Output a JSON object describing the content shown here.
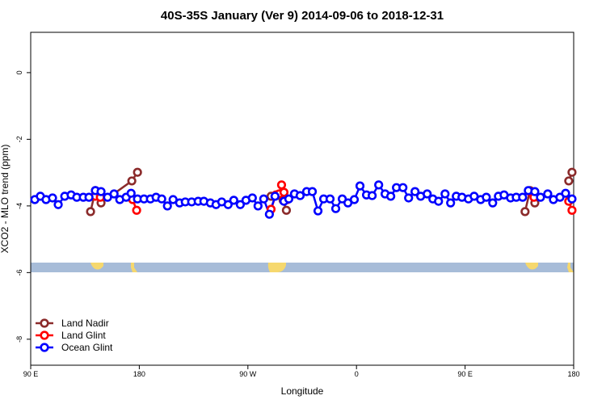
{
  "chart_data": {
    "type": "line",
    "title": "40S-35S January (Ver 9)   2014-09-06 to 2018-12-31",
    "x_label": "Longitude",
    "y_label": "XCO2 - MLO trend (ppm)",
    "xlim": [
      90,
      540
    ],
    "ylim": [
      -8.78,
      1.21
    ],
    "xticks": [
      {
        "value": 90,
        "label": "90 E"
      },
      180,
      {
        "value": 270,
        "label": "90 W"
      },
      {
        "value": 360,
        "label": "0"
      },
      {
        "value": 450,
        "label": "90 E"
      },
      {
        "value": 540,
        "label": "180"
      }
    ],
    "yticks": [
      0,
      -2,
      -4,
      -6,
      -8
    ],
    "legend": "bottom-left",
    "series": [
      {
        "name": "Land Nadir",
        "color": "#8b2b2b",
        "x": [
          139.6,
          143.6,
          148.3,
          173.8,
          178.5,
          null,
          289.2,
          299.2,
          301.9,
          null,
          499.7,
          503.8,
          507.8,
          null,
          535.9,
          538.6
        ],
        "values": [
          -4.17,
          -3.54,
          -3.91,
          -3.25,
          -2.99,
          null,
          -3.71,
          -3.83,
          -4.13,
          null,
          -4.17,
          -3.54,
          -3.91,
          null,
          -3.25,
          -2.99
        ]
      },
      {
        "name": "Land Glint",
        "color": "#ff0000",
        "x": [
          143.6,
          147.7,
          null,
          174.5,
          177.8,
          null,
          289.2,
          293.2,
          295.9,
          297.9,
          299.9,
          302.6,
          null,
          503.8,
          507.1,
          null,
          535.9,
          538.6
        ],
        "values": [
          -3.71,
          -3.74,
          null,
          -3.81,
          -4.13,
          null,
          -4.1,
          -3.67,
          -3.64,
          -3.37,
          -3.59,
          -3.81,
          null,
          -3.57,
          -3.74,
          null,
          -3.86,
          -4.13
        ]
      },
      {
        "name": "Ocean Glint",
        "color": "#0000ff",
        "x": [
          93.4,
          98.0,
          102.7,
          108.1,
          112.8,
          118.2,
          123.5,
          128.2,
          133.6,
          138.3,
          143.6,
          148.3,
          153.7,
          159.1,
          163.8,
          169.1,
          173.2,
          178.5,
          183.9,
          189.2,
          193.9,
          198.6,
          203.3,
          208.0,
          213.4,
          218.1,
          223.4,
          228.8,
          233.5,
          238.9,
          243.6,
          248.3,
          253.6,
          258.3,
          263.7,
          268.4,
          273.7,
          278.4,
          283.1,
          287.8,
          292.5,
          299.9,
          303.9,
          308.6,
          313.3,
          318.7,
          323.4,
          328.1,
          332.8,
          338.1,
          342.8,
          348.2,
          352.9,
          358.2,
          362.9,
          368.3,
          373.0,
          378.4,
          383.7,
          388.4,
          393.1,
          398.5,
          403.2,
          408.5,
          413.2,
          418.6,
          423.3,
          428.0,
          433.4,
          438.0,
          442.7,
          447.4,
          452.8,
          457.5,
          462.9,
          467.6,
          472.9,
          477.6,
          482.3,
          487.7,
          492.4,
          497.7,
          502.4,
          507.8,
          512.5,
          518.5,
          523.2,
          528.6,
          533.3,
          538.6
        ],
        "values": [
          -3.81,
          -3.71,
          -3.81,
          -3.76,
          -3.96,
          -3.71,
          -3.67,
          -3.74,
          -3.74,
          -3.74,
          -3.54,
          -3.57,
          -3.74,
          -3.64,
          -3.81,
          -3.74,
          -3.62,
          -3.79,
          -3.79,
          -3.79,
          -3.74,
          -3.79,
          -4.0,
          -3.81,
          -3.91,
          -3.88,
          -3.88,
          -3.86,
          -3.86,
          -3.91,
          -3.96,
          -3.88,
          -3.96,
          -3.83,
          -3.96,
          -3.83,
          -3.76,
          -4.0,
          -3.79,
          -4.25,
          -3.71,
          -3.86,
          -3.79,
          -3.64,
          -3.69,
          -3.57,
          -3.57,
          -4.15,
          -3.79,
          -3.79,
          -4.08,
          -3.79,
          -3.91,
          -3.81,
          -3.4,
          -3.67,
          -3.69,
          -3.37,
          -3.64,
          -3.71,
          -3.45,
          -3.45,
          -3.76,
          -3.57,
          -3.71,
          -3.64,
          -3.79,
          -3.86,
          -3.64,
          -3.91,
          -3.71,
          -3.74,
          -3.79,
          -3.71,
          -3.81,
          -3.74,
          -3.91,
          -3.71,
          -3.67,
          -3.76,
          -3.74,
          -3.74,
          -3.54,
          -3.57,
          -3.74,
          -3.64,
          -3.81,
          -3.74,
          -3.62,
          -3.79
        ]
      }
    ]
  }
}
